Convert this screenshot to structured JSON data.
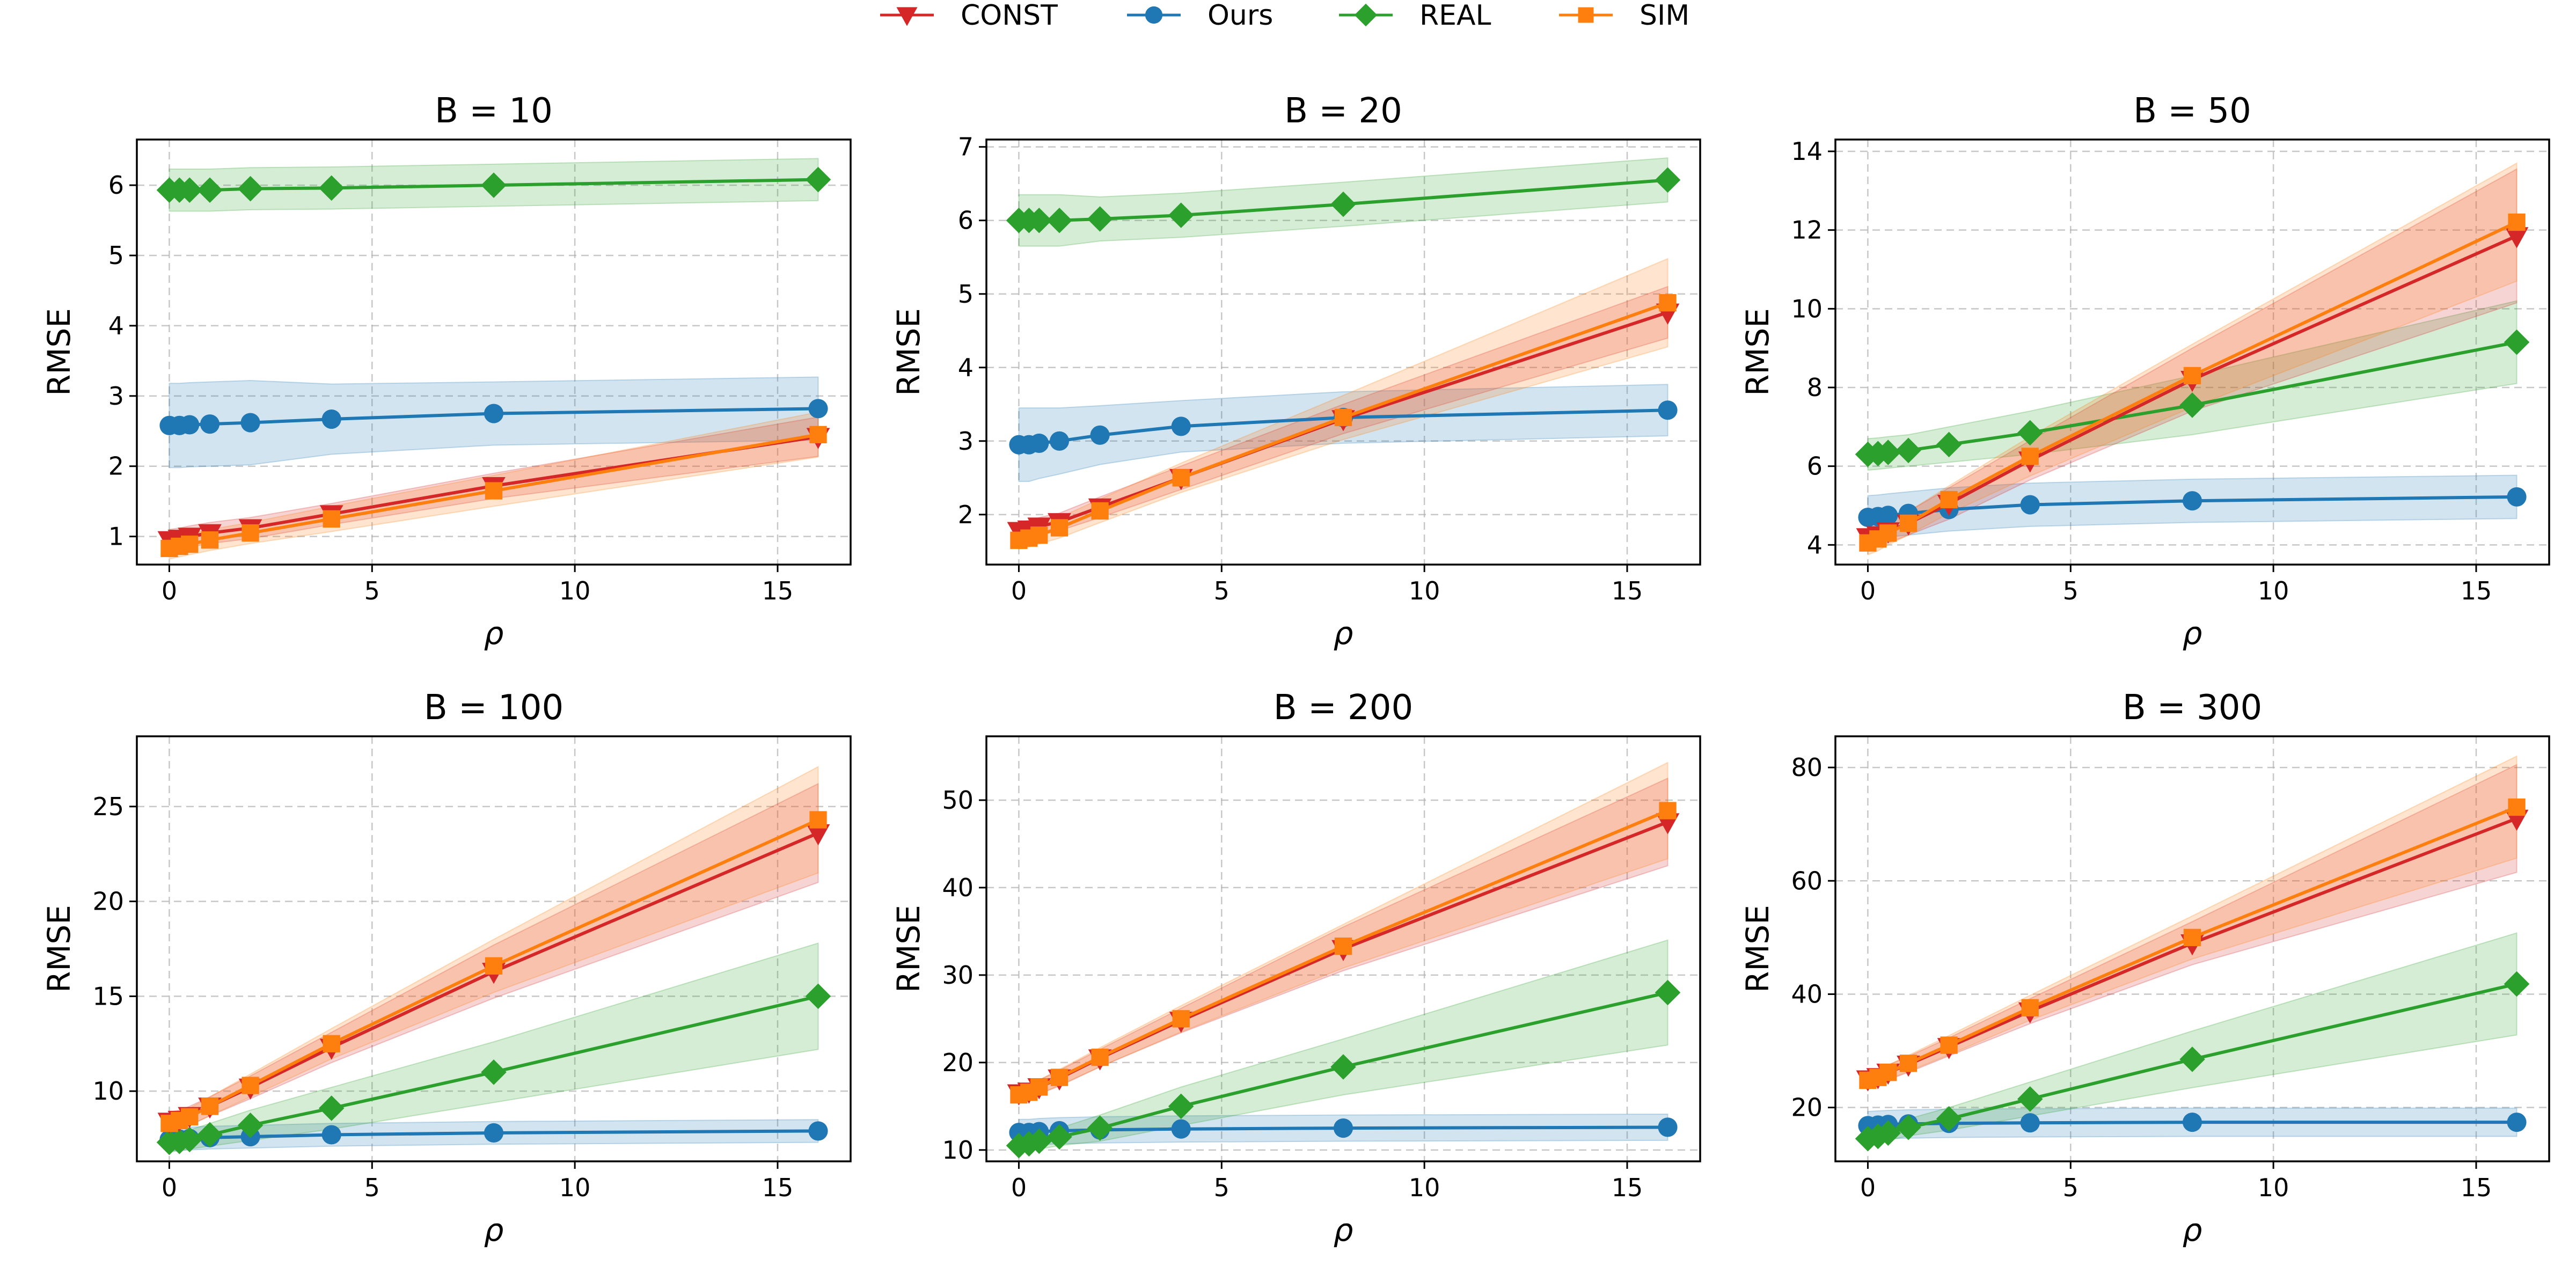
{
  "legend": {
    "items": [
      {
        "label": "CONST",
        "color": "#d62728",
        "marker": "triangle-down"
      },
      {
        "label": "Ours",
        "color": "#1f77b4",
        "marker": "circle"
      },
      {
        "label": "REAL",
        "color": "#2ca02c",
        "marker": "diamond"
      },
      {
        "label": "SIM",
        "color": "#ff7f0e",
        "marker": "square"
      }
    ]
  },
  "chart_data": [
    {
      "type": "line",
      "title": "B = 10",
      "xlabel": "ρ",
      "ylabel": "RMSE",
      "xlim": [
        -0.8,
        16.8
      ],
      "ylim": [
        0.6,
        6.65
      ],
      "xticks": [
        0,
        5,
        10,
        15
      ],
      "yticks": [
        1,
        2,
        3,
        4,
        5,
        6
      ],
      "x": [
        0,
        0.25,
        0.5,
        1,
        2,
        4,
        8,
        16
      ],
      "series": [
        {
          "name": "CONST",
          "values": [
            0.95,
            0.97,
            1.0,
            1.05,
            1.12,
            1.32,
            1.72,
            2.42
          ],
          "band": [
            0.15,
            0.15,
            0.15,
            0.15,
            0.15,
            0.15,
            0.18,
            0.28
          ]
        },
        {
          "name": "Ours",
          "values": [
            2.58,
            2.58,
            2.59,
            2.6,
            2.62,
            2.67,
            2.75,
            2.82
          ],
          "band": [
            0.6,
            0.6,
            0.6,
            0.6,
            0.6,
            0.5,
            0.45,
            0.45
          ]
        },
        {
          "name": "REAL",
          "values": [
            5.93,
            5.93,
            5.93,
            5.93,
            5.95,
            5.96,
            6.0,
            6.08
          ],
          "band": [
            0.3,
            0.3,
            0.3,
            0.3,
            0.3,
            0.3,
            0.3,
            0.3
          ]
        },
        {
          "name": "SIM",
          "values": [
            0.83,
            0.86,
            0.89,
            0.95,
            1.05,
            1.25,
            1.65,
            2.45
          ],
          "band": [
            0.15,
            0.15,
            0.15,
            0.15,
            0.15,
            0.18,
            0.22,
            0.32
          ]
        }
      ]
    },
    {
      "type": "line",
      "title": "B = 20",
      "xlabel": "ρ",
      "ylabel": "RMSE",
      "xlim": [
        -0.8,
        16.8
      ],
      "ylim": [
        1.32,
        7.1
      ],
      "xticks": [
        0,
        5,
        10,
        15
      ],
      "yticks": [
        2,
        3,
        4,
        5,
        6,
        7
      ],
      "x": [
        0,
        0.25,
        0.5,
        1,
        2,
        4,
        8,
        16
      ],
      "series": [
        {
          "name": "CONST",
          "values": [
            1.78,
            1.8,
            1.84,
            1.9,
            2.1,
            2.5,
            3.3,
            4.75
          ],
          "band": [
            0.12,
            0.12,
            0.12,
            0.12,
            0.14,
            0.16,
            0.2,
            0.35
          ]
        },
        {
          "name": "Ours",
          "values": [
            2.95,
            2.95,
            2.97,
            3.0,
            3.08,
            3.2,
            3.32,
            3.42
          ],
          "band": [
            0.5,
            0.5,
            0.48,
            0.45,
            0.4,
            0.35,
            0.35,
            0.35
          ]
        },
        {
          "name": "REAL",
          "values": [
            6.0,
            6.0,
            6.0,
            6.0,
            6.02,
            6.07,
            6.22,
            6.55
          ],
          "band": [
            0.35,
            0.35,
            0.35,
            0.35,
            0.3,
            0.3,
            0.3,
            0.3
          ]
        },
        {
          "name": "SIM",
          "values": [
            1.65,
            1.68,
            1.72,
            1.82,
            2.05,
            2.5,
            3.32,
            4.88
          ],
          "band": [
            0.12,
            0.12,
            0.12,
            0.14,
            0.16,
            0.2,
            0.3,
            0.6
          ]
        }
      ]
    },
    {
      "type": "line",
      "title": "B = 50",
      "xlabel": "ρ",
      "ylabel": "RMSE",
      "xlim": [
        -0.8,
        16.8
      ],
      "ylim": [
        3.5,
        14.3
      ],
      "xticks": [
        0,
        5,
        10,
        15
      ],
      "yticks": [
        4,
        6,
        8,
        10,
        12,
        14
      ],
      "x": [
        0,
        0.25,
        0.5,
        1,
        2,
        4,
        8,
        16
      ],
      "series": [
        {
          "name": "CONST",
          "values": [
            4.2,
            4.25,
            4.35,
            4.55,
            5.05,
            6.15,
            8.2,
            11.85
          ],
          "band": [
            0.3,
            0.3,
            0.3,
            0.3,
            0.4,
            0.5,
            0.8,
            1.7
          ]
        },
        {
          "name": "Ours",
          "values": [
            4.7,
            4.72,
            4.75,
            4.8,
            4.9,
            5.02,
            5.12,
            5.22
          ],
          "band": [
            0.55,
            0.55,
            0.55,
            0.55,
            0.55,
            0.55,
            0.55,
            0.55
          ]
        },
        {
          "name": "REAL",
          "values": [
            6.3,
            6.32,
            6.35,
            6.4,
            6.55,
            6.85,
            7.55,
            9.15
          ],
          "band": [
            0.4,
            0.4,
            0.4,
            0.4,
            0.45,
            0.55,
            0.75,
            1.05
          ]
        },
        {
          "name": "SIM",
          "values": [
            4.05,
            4.15,
            4.3,
            4.55,
            5.15,
            6.25,
            8.3,
            12.2
          ],
          "band": [
            0.3,
            0.3,
            0.3,
            0.3,
            0.35,
            0.5,
            0.8,
            1.5
          ]
        }
      ]
    },
    {
      "type": "line",
      "title": "B = 100",
      "xlabel": "ρ",
      "ylabel": "RMSE",
      "xlim": [
        -0.8,
        16.8
      ],
      "ylim": [
        6.3,
        28.7
      ],
      "xticks": [
        0,
        5,
        10,
        15
      ],
      "yticks": [
        10,
        15,
        20,
        25
      ],
      "x": [
        0,
        0.25,
        0.5,
        1,
        2,
        4,
        8,
        16
      ],
      "series": [
        {
          "name": "CONST",
          "values": [
            8.4,
            8.5,
            8.7,
            9.2,
            10.2,
            12.3,
            16.3,
            23.6
          ],
          "band": [
            0.5,
            0.5,
            0.5,
            0.5,
            0.6,
            0.8,
            1.4,
            2.6
          ]
        },
        {
          "name": "Ours",
          "values": [
            7.45,
            7.47,
            7.5,
            7.55,
            7.6,
            7.7,
            7.8,
            7.9
          ],
          "band": [
            0.6,
            0.6,
            0.6,
            0.6,
            0.6,
            0.6,
            0.6,
            0.6
          ]
        },
        {
          "name": "REAL",
          "values": [
            7.3,
            7.35,
            7.45,
            7.7,
            8.2,
            9.1,
            11.0,
            15.0
          ],
          "band": [
            0.5,
            0.5,
            0.5,
            0.6,
            0.8,
            1.1,
            1.6,
            2.8
          ]
        },
        {
          "name": "SIM",
          "values": [
            8.3,
            8.45,
            8.65,
            9.2,
            10.3,
            12.5,
            16.6,
            24.3
          ],
          "band": [
            0.4,
            0.4,
            0.45,
            0.5,
            0.6,
            0.8,
            1.4,
            2.8
          ]
        }
      ]
    },
    {
      "type": "line",
      "title": "B = 200",
      "xlabel": "ρ",
      "ylabel": "RMSE",
      "xlim": [
        -0.8,
        16.8
      ],
      "ylim": [
        8.7,
        57.3
      ],
      "xticks": [
        0,
        5,
        10,
        15
      ],
      "yticks": [
        10,
        20,
        30,
        40,
        50
      ],
      "x": [
        0,
        0.25,
        0.5,
        1,
        2,
        4,
        8,
        16
      ],
      "series": [
        {
          "name": "CONST",
          "values": [
            16.5,
            16.7,
            17.2,
            18.2,
            20.5,
            24.8,
            33.0,
            47.5
          ],
          "band": [
            0.8,
            0.8,
            0.8,
            0.9,
            1.0,
            1.4,
            2.5,
            5.0
          ]
        },
        {
          "name": "Ours",
          "values": [
            12.0,
            12.0,
            12.1,
            12.2,
            12.3,
            12.4,
            12.5,
            12.6
          ],
          "band": [
            1.5,
            1.5,
            1.5,
            1.5,
            1.5,
            1.5,
            1.5,
            1.5
          ]
        },
        {
          "name": "REAL",
          "values": [
            10.5,
            10.7,
            11.0,
            11.5,
            12.5,
            15.0,
            19.5,
            28.0
          ],
          "band": [
            0.8,
            0.8,
            0.9,
            1.0,
            1.5,
            2.2,
            3.2,
            6.0
          ]
        },
        {
          "name": "SIM",
          "values": [
            16.3,
            16.6,
            17.2,
            18.3,
            20.6,
            25.0,
            33.3,
            48.8
          ],
          "band": [
            0.8,
            0.8,
            0.8,
            0.9,
            1.1,
            1.5,
            2.5,
            5.5
          ]
        }
      ]
    },
    {
      "type": "line",
      "title": "B = 300",
      "xlabel": "ρ",
      "ylabel": "RMSE",
      "xlim": [
        -0.8,
        16.8
      ],
      "ylim": [
        10.5,
        85.5
      ],
      "xticks": [
        0,
        5,
        10,
        15
      ],
      "yticks": [
        20,
        40,
        60,
        80
      ],
      "x": [
        0,
        0.25,
        0.5,
        1,
        2,
        4,
        8,
        16
      ],
      "series": [
        {
          "name": "CONST",
          "values": [
            25.0,
            25.4,
            26.2,
            27.6,
            30.7,
            37.0,
            49.0,
            71.0
          ],
          "band": [
            1.2,
            1.2,
            1.3,
            1.4,
            1.6,
            2.2,
            3.8,
            9.5
          ]
        },
        {
          "name": "Ours",
          "values": [
            16.8,
            16.9,
            17.0,
            17.1,
            17.2,
            17.3,
            17.4,
            17.4
          ],
          "band": [
            2.5,
            2.5,
            2.5,
            2.5,
            2.5,
            2.5,
            2.5,
            2.5
          ]
        },
        {
          "name": "REAL",
          "values": [
            14.5,
            14.9,
            15.5,
            16.5,
            18.0,
            21.5,
            28.5,
            41.8
          ],
          "band": [
            1.2,
            1.2,
            1.3,
            1.5,
            2.0,
            3.0,
            5.0,
            9.0
          ]
        },
        {
          "name": "SIM",
          "values": [
            24.8,
            25.3,
            26.2,
            27.8,
            31.0,
            37.6,
            50.0,
            73.0
          ],
          "band": [
            1.2,
            1.2,
            1.3,
            1.4,
            1.7,
            2.2,
            3.8,
            9.0
          ]
        }
      ]
    }
  ]
}
